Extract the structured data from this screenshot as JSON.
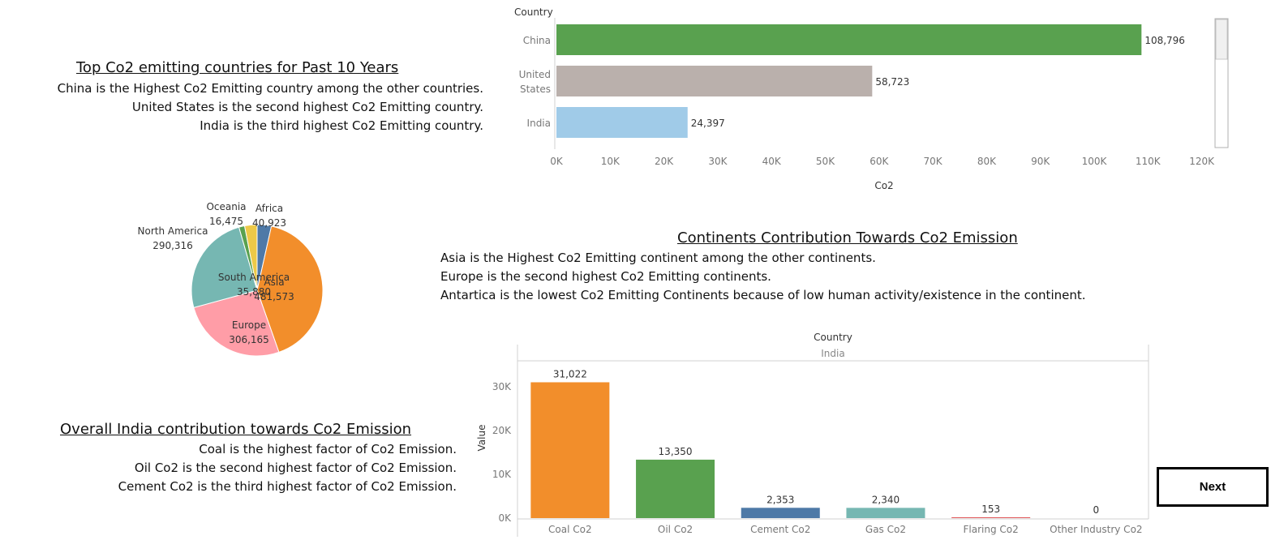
{
  "top_section": {
    "heading": "Top Co2 emitting countries for Past 10 Years",
    "lines": [
      "China is the Highest Co2 Emitting country among the other countries.",
      "United States is the second highest Co2 Emitting country.",
      "India is the third highest Co2 Emitting country."
    ]
  },
  "continent_section": {
    "heading": "Continents Contribution Towards Co2 Emission",
    "lines": [
      "Asia is the Highest Co2 Emitting continent among the other continents.",
      "Europe is the second highest Co2 Emitting continents.",
      "Antartica is the lowest Co2 Emitting Continents because of low human activity/existence in the continent."
    ]
  },
  "india_section": {
    "heading": "Overall India contribution towards Co2 Emission",
    "lines": [
      "Coal is the highest factor of Co2 Emission.",
      "Oil Co2 is the second highest factor of Co2 Emission.",
      "Cement Co2 is the third highest factor of Co2 Emission."
    ]
  },
  "next_button": {
    "label": "Next"
  },
  "chart_data": [
    {
      "type": "bar",
      "orientation": "horizontal",
      "ylabel": "Country",
      "xlabel": "Co2",
      "categories": [
        "China",
        "United States",
        "India"
      ],
      "values": [
        108796,
        58723,
        24397
      ],
      "value_labels": [
        "108,796",
        "58,723",
        "24,397"
      ],
      "colors": [
        "#59a14f",
        "#bab0ac",
        "#a0cbe8"
      ],
      "xlim": [
        0,
        125000
      ],
      "xticks": [
        0,
        10000,
        20000,
        30000,
        40000,
        50000,
        60000,
        70000,
        80000,
        90000,
        100000,
        110000,
        120000
      ],
      "xtick_labels": [
        "0K",
        "10K",
        "20K",
        "30K",
        "40K",
        "50K",
        "60K",
        "70K",
        "80K",
        "90K",
        "100K",
        "110K",
        "120K"
      ],
      "grid": false
    },
    {
      "type": "pie",
      "categories": [
        "Asia",
        "Europe",
        "North America",
        "Oceania",
        "Africa",
        "South America"
      ],
      "values": [
        481573,
        306165,
        290316,
        16475,
        40923,
        35880
      ],
      "value_labels": [
        "481,573",
        "306,165",
        "290,316",
        "16,475",
        "40,923",
        "35,880"
      ],
      "colors": [
        "#f28e2b",
        "#ff9da7",
        "#76b7b2",
        "#59a14f",
        "#4e79a7",
        "#edc948"
      ]
    },
    {
      "type": "bar",
      "header_title": "Country",
      "header_subtitle": "India",
      "ylabel": "Value",
      "categories": [
        "Coal Co2",
        "Oil Co2",
        "Cement Co2",
        "Gas Co2",
        "Flaring Co2",
        "Other Industry Co2"
      ],
      "values": [
        31022,
        13350,
        2353,
        2340,
        153,
        0
      ],
      "value_labels": [
        "31,022",
        "13,350",
        "2,353",
        "2,340",
        "153",
        "0"
      ],
      "colors": [
        "#f28e2b",
        "#59a14f",
        "#4e79a7",
        "#76b7b2",
        "#e15759",
        "#bab0ac"
      ],
      "ylim": [
        0,
        35000
      ],
      "yticks": [
        0,
        10000,
        20000,
        30000
      ],
      "ytick_labels": [
        "0K",
        "10K",
        "20K",
        "30K"
      ],
      "grid": false
    }
  ]
}
